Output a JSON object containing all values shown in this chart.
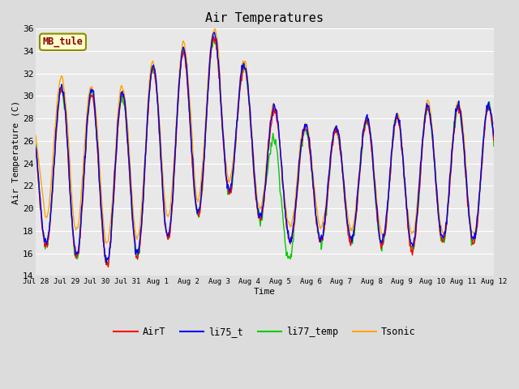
{
  "title": "Air Temperatures",
  "xlabel": "Time",
  "ylabel": "Air Temperature (C)",
  "ylim": [
    14,
    36
  ],
  "yticks": [
    14,
    16,
    18,
    20,
    22,
    24,
    26,
    28,
    30,
    32,
    34,
    36
  ],
  "annotation_text": "MB_tule",
  "annotation_color": "#8B0000",
  "annotation_bg": "#FFFFCC",
  "annotation_border": "#8B8B00",
  "colors": {
    "AirT": "#FF0000",
    "li75_t": "#0000FF",
    "li77_temp": "#00CC00",
    "Tsonic": "#FFA500"
  },
  "legend_labels": [
    "AirT",
    "li75_t",
    "li77_temp",
    "Tsonic"
  ],
  "x_tick_labels": [
    "Jul 28",
    "Jul 29",
    "Jul 30",
    "Jul 31",
    "Aug 1",
    "Aug 2",
    "Aug 3",
    "Aug 4",
    "Aug 5",
    "Aug 6",
    "Aug 7",
    "Aug 8",
    "Aug 9",
    "Aug 10",
    "Aug 11",
    "Aug 12"
  ],
  "background_color": "#DCDCDC",
  "plot_bg_dark": "#D8D8D8",
  "plot_bg_light": "#E8E8E8",
  "grid_color": "#FFFFFF"
}
